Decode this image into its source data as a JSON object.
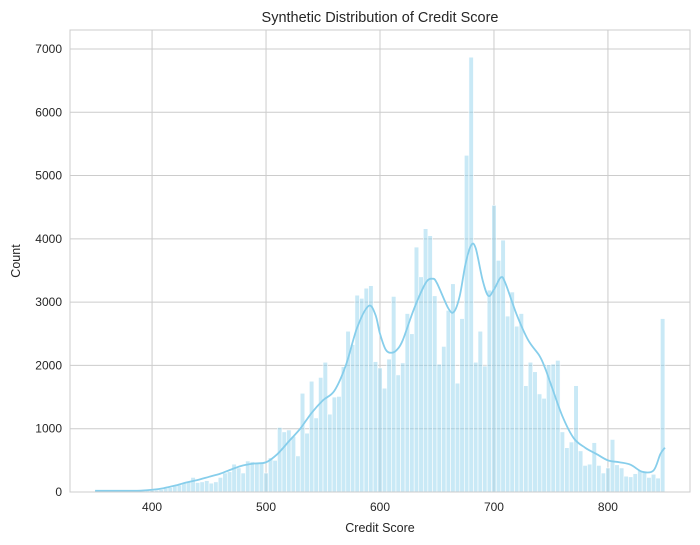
{
  "chart_data": {
    "type": "bar",
    "title": "Synthetic Distribution of Credit Score",
    "xlabel": "Credit Score",
    "ylabel": "Count",
    "xlim": [
      328,
      872
    ],
    "ylim": [
      0,
      7300
    ],
    "xticks": [
      400,
      500,
      600,
      700,
      800
    ],
    "yticks": [
      0,
      1000,
      2000,
      3000,
      4000,
      5000,
      6000,
      7000
    ],
    "grid": true,
    "bin_width": 4,
    "bins": [
      {
        "x": 350,
        "count": 5
      },
      {
        "x": 354,
        "count": 5
      },
      {
        "x": 358,
        "count": 6
      },
      {
        "x": 362,
        "count": 7
      },
      {
        "x": 366,
        "count": 8
      },
      {
        "x": 370,
        "count": 9
      },
      {
        "x": 374,
        "count": 10
      },
      {
        "x": 378,
        "count": 12
      },
      {
        "x": 382,
        "count": 14
      },
      {
        "x": 386,
        "count": 16
      },
      {
        "x": 390,
        "count": 18
      },
      {
        "x": 394,
        "count": 20
      },
      {
        "x": 398,
        "count": 25
      },
      {
        "x": 402,
        "count": 30
      },
      {
        "x": 406,
        "count": 40
      },
      {
        "x": 410,
        "count": 55
      },
      {
        "x": 414,
        "count": 70
      },
      {
        "x": 418,
        "count": 90
      },
      {
        "x": 422,
        "count": 110
      },
      {
        "x": 426,
        "count": 140
      },
      {
        "x": 430,
        "count": 160
      },
      {
        "x": 434,
        "count": 230
      },
      {
        "x": 438,
        "count": 150
      },
      {
        "x": 442,
        "count": 160
      },
      {
        "x": 446,
        "count": 180
      },
      {
        "x": 450,
        "count": 140
      },
      {
        "x": 454,
        "count": 160
      },
      {
        "x": 458,
        "count": 230
      },
      {
        "x": 462,
        "count": 300
      },
      {
        "x": 466,
        "count": 320
      },
      {
        "x": 470,
        "count": 440
      },
      {
        "x": 474,
        "count": 380
      },
      {
        "x": 478,
        "count": 300
      },
      {
        "x": 482,
        "count": 490
      },
      {
        "x": 486,
        "count": 480
      },
      {
        "x": 490,
        "count": 460
      },
      {
        "x": 494,
        "count": 470
      },
      {
        "x": 498,
        "count": 300
      },
      {
        "x": 502,
        "count": 540
      },
      {
        "x": 506,
        "count": 500
      },
      {
        "x": 510,
        "count": 1020
      },
      {
        "x": 514,
        "count": 950
      },
      {
        "x": 518,
        "count": 980
      },
      {
        "x": 522,
        "count": 880
      },
      {
        "x": 526,
        "count": 570
      },
      {
        "x": 530,
        "count": 1560
      },
      {
        "x": 534,
        "count": 930
      },
      {
        "x": 538,
        "count": 1750
      },
      {
        "x": 542,
        "count": 1170
      },
      {
        "x": 546,
        "count": 1810
      },
      {
        "x": 550,
        "count": 2050
      },
      {
        "x": 554,
        "count": 1230
      },
      {
        "x": 558,
        "count": 1500
      },
      {
        "x": 562,
        "count": 1510
      },
      {
        "x": 566,
        "count": 1980
      },
      {
        "x": 570,
        "count": 2540
      },
      {
        "x": 574,
        "count": 2330
      },
      {
        "x": 578,
        "count": 3110
      },
      {
        "x": 582,
        "count": 3060
      },
      {
        "x": 586,
        "count": 3220
      },
      {
        "x": 590,
        "count": 3260
      },
      {
        "x": 594,
        "count": 2060
      },
      {
        "x": 598,
        "count": 1960
      },
      {
        "x": 602,
        "count": 1640
      },
      {
        "x": 606,
        "count": 2100
      },
      {
        "x": 610,
        "count": 3090
      },
      {
        "x": 614,
        "count": 1850
      },
      {
        "x": 618,
        "count": 2040
      },
      {
        "x": 622,
        "count": 2820
      },
      {
        "x": 626,
        "count": 2500
      },
      {
        "x": 630,
        "count": 3870
      },
      {
        "x": 634,
        "count": 3400
      },
      {
        "x": 638,
        "count": 4160
      },
      {
        "x": 642,
        "count": 4050
      },
      {
        "x": 646,
        "count": 3100
      },
      {
        "x": 650,
        "count": 2020
      },
      {
        "x": 654,
        "count": 2300
      },
      {
        "x": 658,
        "count": 2870
      },
      {
        "x": 662,
        "count": 3290
      },
      {
        "x": 666,
        "count": 1720
      },
      {
        "x": 670,
        "count": 2740
      },
      {
        "x": 674,
        "count": 5320
      },
      {
        "x": 678,
        "count": 6870
      },
      {
        "x": 682,
        "count": 2050
      },
      {
        "x": 686,
        "count": 2540
      },
      {
        "x": 690,
        "count": 1990
      },
      {
        "x": 694,
        "count": 3190
      },
      {
        "x": 698,
        "count": 4530
      },
      {
        "x": 702,
        "count": 3660
      },
      {
        "x": 706,
        "count": 3980
      },
      {
        "x": 710,
        "count": 2780
      },
      {
        "x": 714,
        "count": 3160
      },
      {
        "x": 718,
        "count": 2620
      },
      {
        "x": 722,
        "count": 2820
      },
      {
        "x": 726,
        "count": 1680
      },
      {
        "x": 730,
        "count": 2050
      },
      {
        "x": 734,
        "count": 1900
      },
      {
        "x": 738,
        "count": 1550
      },
      {
        "x": 742,
        "count": 1480
      },
      {
        "x": 746,
        "count": 2010
      },
      {
        "x": 750,
        "count": 2020
      },
      {
        "x": 754,
        "count": 2080
      },
      {
        "x": 758,
        "count": 950
      },
      {
        "x": 762,
        "count": 700
      },
      {
        "x": 766,
        "count": 790
      },
      {
        "x": 770,
        "count": 1680
      },
      {
        "x": 774,
        "count": 650
      },
      {
        "x": 778,
        "count": 420
      },
      {
        "x": 782,
        "count": 440
      },
      {
        "x": 786,
        "count": 780
      },
      {
        "x": 790,
        "count": 420
      },
      {
        "x": 794,
        "count": 300
      },
      {
        "x": 798,
        "count": 380
      },
      {
        "x": 802,
        "count": 830
      },
      {
        "x": 806,
        "count": 430
      },
      {
        "x": 810,
        "count": 380
      },
      {
        "x": 814,
        "count": 250
      },
      {
        "x": 818,
        "count": 240
      },
      {
        "x": 822,
        "count": 290
      },
      {
        "x": 826,
        "count": 340
      },
      {
        "x": 830,
        "count": 330
      },
      {
        "x": 834,
        "count": 230
      },
      {
        "x": 838,
        "count": 280
      },
      {
        "x": 842,
        "count": 220
      },
      {
        "x": 846,
        "count": 2740
      }
    ],
    "kde": [
      [
        350,
        20
      ],
      [
        360,
        20
      ],
      [
        370,
        20
      ],
      [
        380,
        20
      ],
      [
        390,
        22
      ],
      [
        400,
        35
      ],
      [
        410,
        60
      ],
      [
        420,
        100
      ],
      [
        430,
        150
      ],
      [
        440,
        190
      ],
      [
        450,
        240
      ],
      [
        460,
        290
      ],
      [
        470,
        360
      ],
      [
        480,
        420
      ],
      [
        490,
        450
      ],
      [
        500,
        470
      ],
      [
        510,
        600
      ],
      [
        520,
        800
      ],
      [
        530,
        1000
      ],
      [
        540,
        1250
      ],
      [
        550,
        1450
      ],
      [
        560,
        1600
      ],
      [
        570,
        2000
      ],
      [
        580,
        2600
      ],
      [
        590,
        2940
      ],
      [
        596,
        2800
      ],
      [
        600,
        2500
      ],
      [
        605,
        2250
      ],
      [
        610,
        2200
      ],
      [
        615,
        2250
      ],
      [
        620,
        2400
      ],
      [
        630,
        2900
      ],
      [
        640,
        3300
      ],
      [
        646,
        3370
      ],
      [
        650,
        3300
      ],
      [
        660,
        2900
      ],
      [
        665,
        2850
      ],
      [
        670,
        3100
      ],
      [
        675,
        3600
      ],
      [
        680,
        3900
      ],
      [
        684,
        3850
      ],
      [
        690,
        3350
      ],
      [
        695,
        3100
      ],
      [
        700,
        3200
      ],
      [
        706,
        3390
      ],
      [
        710,
        3300
      ],
      [
        720,
        2800
      ],
      [
        730,
        2400
      ],
      [
        740,
        2150
      ],
      [
        745,
        1950
      ],
      [
        750,
        1700
      ],
      [
        760,
        1200
      ],
      [
        770,
        850
      ],
      [
        780,
        700
      ],
      [
        790,
        600
      ],
      [
        800,
        500
      ],
      [
        810,
        470
      ],
      [
        820,
        430
      ],
      [
        830,
        320
      ],
      [
        840,
        340
      ],
      [
        846,
        600
      ],
      [
        850,
        700
      ]
    ],
    "colors": {
      "bar": "#87ceeb",
      "kde": "#87ceeb",
      "grid": "#cccccc",
      "spine": "#cccccc"
    }
  }
}
